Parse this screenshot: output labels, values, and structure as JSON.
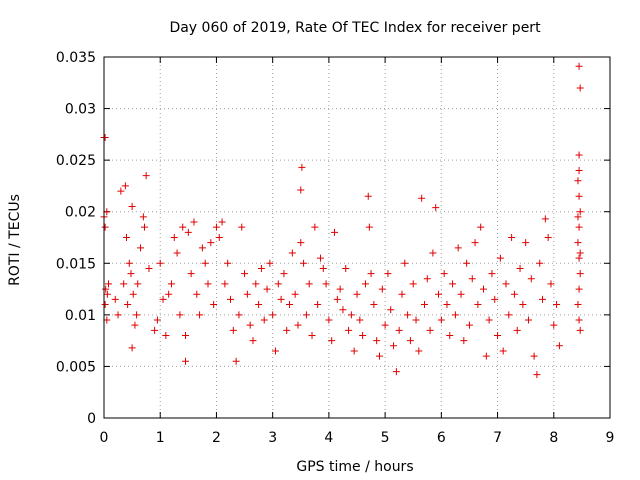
{
  "chart_data": {
    "type": "scatter",
    "title": "Day 060 of 2019, Rate Of TEC Index for receiver pert",
    "xlabel": "GPS time / hours",
    "ylabel": "ROTI / TECUs",
    "xlim": [
      0,
      9
    ],
    "ylim": [
      0,
      0.035
    ],
    "x_ticks": [
      0,
      1,
      2,
      3,
      4,
      5,
      6,
      7,
      8,
      9
    ],
    "x_tick_labels": [
      "0",
      "1",
      "2",
      "3",
      "4",
      "5",
      "6",
      "7",
      "8",
      "9"
    ],
    "y_ticks": [
      0,
      0.005,
      0.01,
      0.015,
      0.02,
      0.025,
      0.03,
      0.035
    ],
    "y_tick_labels": [
      "0",
      "0.005",
      "0.01",
      "0.015",
      "0.02",
      "0.025",
      "0.03",
      "0.035"
    ],
    "grid": true,
    "marker": "plus",
    "color": "#e00000",
    "points": [
      [
        0.0,
        0.0272
      ],
      [
        0.02,
        0.0272
      ],
      [
        0.0,
        0.0195
      ],
      [
        0.02,
        0.0185
      ],
      [
        0.05,
        0.02
      ],
      [
        0.03,
        0.0125
      ],
      [
        0.06,
        0.012
      ],
      [
        0.02,
        0.011
      ],
      [
        0.05,
        0.0095
      ],
      [
        0.08,
        0.013
      ],
      [
        0.2,
        0.0115
      ],
      [
        0.25,
        0.01
      ],
      [
        0.3,
        0.022
      ],
      [
        0.38,
        0.0225
      ],
      [
        0.4,
        0.0175
      ],
      [
        0.45,
        0.015
      ],
      [
        0.48,
        0.014
      ],
      [
        0.5,
        0.0205
      ],
      [
        0.52,
        0.012
      ],
      [
        0.55,
        0.009
      ],
      [
        0.5,
        0.0068
      ],
      [
        0.6,
        0.013
      ],
      [
        0.65,
        0.0165
      ],
      [
        0.7,
        0.0195
      ],
      [
        0.72,
        0.0185
      ],
      [
        0.75,
        0.0235
      ],
      [
        0.8,
        0.0145
      ],
      [
        0.35,
        0.013
      ],
      [
        0.42,
        0.011
      ],
      [
        0.58,
        0.01
      ],
      [
        0.9,
        0.0085
      ],
      [
        0.95,
        0.0095
      ],
      [
        1.0,
        0.015
      ],
      [
        1.05,
        0.0115
      ],
      [
        1.1,
        0.008
      ],
      [
        1.15,
        0.012
      ],
      [
        1.2,
        0.013
      ],
      [
        1.25,
        0.0175
      ],
      [
        1.3,
        0.016
      ],
      [
        1.35,
        0.01
      ],
      [
        1.4,
        0.0185
      ],
      [
        1.45,
        0.008
      ],
      [
        1.45,
        0.0055
      ],
      [
        1.5,
        0.018
      ],
      [
        1.55,
        0.014
      ],
      [
        1.6,
        0.019
      ],
      [
        1.65,
        0.012
      ],
      [
        1.7,
        0.01
      ],
      [
        1.75,
        0.0165
      ],
      [
        1.8,
        0.015
      ],
      [
        1.85,
        0.013
      ],
      [
        1.9,
        0.017
      ],
      [
        1.95,
        0.011
      ],
      [
        2.0,
        0.0185
      ],
      [
        2.05,
        0.0175
      ],
      [
        2.1,
        0.019
      ],
      [
        2.15,
        0.013
      ],
      [
        2.2,
        0.015
      ],
      [
        2.25,
        0.0115
      ],
      [
        2.3,
        0.0085
      ],
      [
        2.35,
        0.0055
      ],
      [
        2.4,
        0.01
      ],
      [
        2.45,
        0.0185
      ],
      [
        2.5,
        0.014
      ],
      [
        2.55,
        0.012
      ],
      [
        2.6,
        0.009
      ],
      [
        2.65,
        0.0075
      ],
      [
        2.7,
        0.013
      ],
      [
        2.75,
        0.011
      ],
      [
        2.8,
        0.0145
      ],
      [
        2.85,
        0.0095
      ],
      [
        2.9,
        0.0125
      ],
      [
        2.95,
        0.015
      ],
      [
        3.0,
        0.01
      ],
      [
        3.05,
        0.0065
      ],
      [
        3.1,
        0.013
      ],
      [
        3.15,
        0.0115
      ],
      [
        3.2,
        0.014
      ],
      [
        3.25,
        0.0085
      ],
      [
        3.3,
        0.011
      ],
      [
        3.35,
        0.016
      ],
      [
        3.4,
        0.012
      ],
      [
        3.45,
        0.009
      ],
      [
        3.5,
        0.017
      ],
      [
        3.52,
        0.0243
      ],
      [
        3.5,
        0.0221
      ],
      [
        3.55,
        0.015
      ],
      [
        3.6,
        0.01
      ],
      [
        3.65,
        0.013
      ],
      [
        3.7,
        0.008
      ],
      [
        3.75,
        0.0185
      ],
      [
        3.8,
        0.011
      ],
      [
        3.85,
        0.0155
      ],
      [
        3.9,
        0.0145
      ],
      [
        3.95,
        0.013
      ],
      [
        4.0,
        0.0095
      ],
      [
        4.05,
        0.0075
      ],
      [
        4.1,
        0.018
      ],
      [
        4.15,
        0.0115
      ],
      [
        4.2,
        0.0125
      ],
      [
        4.25,
        0.0105
      ],
      [
        4.3,
        0.0145
      ],
      [
        4.35,
        0.0085
      ],
      [
        4.4,
        0.01
      ],
      [
        4.45,
        0.0065
      ],
      [
        4.5,
        0.012
      ],
      [
        4.55,
        0.0095
      ],
      [
        4.6,
        0.008
      ],
      [
        4.65,
        0.013
      ],
      [
        4.7,
        0.0215
      ],
      [
        4.72,
        0.0185
      ],
      [
        4.75,
        0.014
      ],
      [
        4.8,
        0.011
      ],
      [
        4.85,
        0.0075
      ],
      [
        4.9,
        0.006
      ],
      [
        4.95,
        0.0125
      ],
      [
        5.0,
        0.009
      ],
      [
        5.05,
        0.014
      ],
      [
        5.1,
        0.0105
      ],
      [
        5.15,
        0.007
      ],
      [
        5.2,
        0.0045
      ],
      [
        5.25,
        0.0085
      ],
      [
        5.3,
        0.012
      ],
      [
        5.35,
        0.015
      ],
      [
        5.4,
        0.01
      ],
      [
        5.45,
        0.0075
      ],
      [
        5.5,
        0.013
      ],
      [
        5.55,
        0.0095
      ],
      [
        5.6,
        0.0065
      ],
      [
        5.65,
        0.0213
      ],
      [
        5.7,
        0.011
      ],
      [
        5.75,
        0.0135
      ],
      [
        5.8,
        0.0085
      ],
      [
        5.85,
        0.016
      ],
      [
        5.9,
        0.0204
      ],
      [
        5.95,
        0.012
      ],
      [
        6.0,
        0.0095
      ],
      [
        6.05,
        0.014
      ],
      [
        6.1,
        0.011
      ],
      [
        6.15,
        0.008
      ],
      [
        6.2,
        0.013
      ],
      [
        6.25,
        0.01
      ],
      [
        6.3,
        0.0165
      ],
      [
        6.35,
        0.012
      ],
      [
        6.4,
        0.0075
      ],
      [
        6.45,
        0.015
      ],
      [
        6.5,
        0.009
      ],
      [
        6.55,
        0.0135
      ],
      [
        6.6,
        0.017
      ],
      [
        6.65,
        0.011
      ],
      [
        6.7,
        0.0185
      ],
      [
        6.75,
        0.0125
      ],
      [
        6.8,
        0.006
      ],
      [
        6.85,
        0.0095
      ],
      [
        6.9,
        0.014
      ],
      [
        6.95,
        0.0115
      ],
      [
        7.0,
        0.008
      ],
      [
        7.05,
        0.0155
      ],
      [
        7.1,
        0.0065
      ],
      [
        7.15,
        0.013
      ],
      [
        7.2,
        0.01
      ],
      [
        7.25,
        0.0175
      ],
      [
        7.3,
        0.012
      ],
      [
        7.35,
        0.0085
      ],
      [
        7.4,
        0.0145
      ],
      [
        7.45,
        0.011
      ],
      [
        7.5,
        0.017
      ],
      [
        7.55,
        0.0095
      ],
      [
        7.6,
        0.0135
      ],
      [
        7.65,
        0.006
      ],
      [
        7.7,
        0.0042
      ],
      [
        7.75,
        0.015
      ],
      [
        7.8,
        0.0115
      ],
      [
        7.85,
        0.0193
      ],
      [
        7.9,
        0.0175
      ],
      [
        7.95,
        0.013
      ],
      [
        8.0,
        0.009
      ],
      [
        8.05,
        0.011
      ],
      [
        8.1,
        0.007
      ],
      [
        8.45,
        0.0341
      ],
      [
        8.47,
        0.032
      ],
      [
        8.45,
        0.0255
      ],
      [
        8.43,
        0.023
      ],
      [
        8.45,
        0.0215
      ],
      [
        8.47,
        0.02
      ],
      [
        8.45,
        0.0185
      ],
      [
        8.43,
        0.017
      ],
      [
        8.45,
        0.0155
      ],
      [
        8.47,
        0.014
      ],
      [
        8.45,
        0.0125
      ],
      [
        8.43,
        0.011
      ],
      [
        8.45,
        0.0095
      ],
      [
        8.47,
        0.0085
      ],
      [
        8.45,
        0.024
      ],
      [
        8.43,
        0.0195
      ],
      [
        8.47,
        0.016
      ]
    ]
  }
}
